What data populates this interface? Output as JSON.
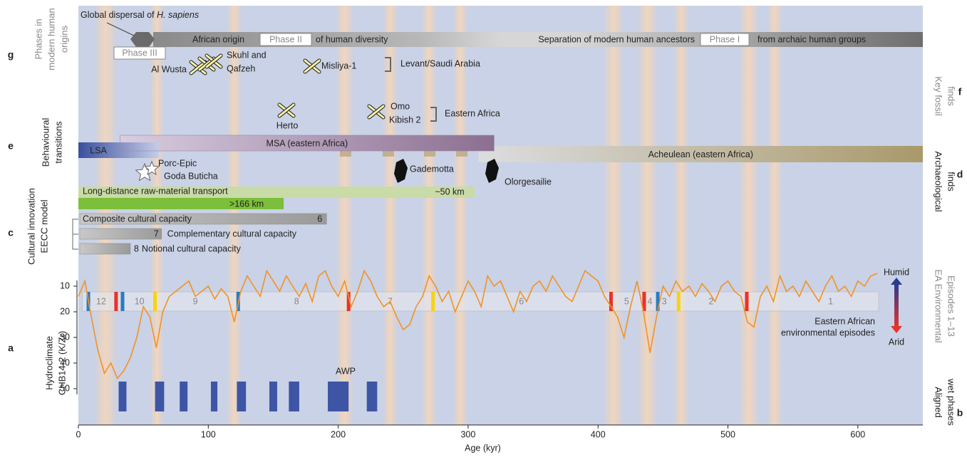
{
  "chart_data": {
    "type": "line",
    "xlabel": "Age (kyr)",
    "ylabel_lines": [
      "Hydroclimate",
      "CHB14-2 (K/Zr)"
    ],
    "letter": "a",
    "xlim": [
      0,
      650
    ],
    "xticks": [
      0,
      100,
      200,
      300,
      400,
      500,
      600
    ],
    "ylim": [
      55,
      0
    ],
    "yticks": [
      10,
      20,
      30,
      40,
      50
    ],
    "color": "#f39223",
    "x": [
      0,
      5,
      10,
      15,
      20,
      25,
      30,
      35,
      40,
      45,
      50,
      55,
      60,
      65,
      70,
      75,
      80,
      85,
      90,
      95,
      100,
      105,
      110,
      115,
      120,
      125,
      130,
      135,
      140,
      145,
      150,
      155,
      160,
      165,
      170,
      175,
      180,
      185,
      190,
      195,
      200,
      205,
      210,
      215,
      220,
      225,
      230,
      235,
      240,
      245,
      250,
      255,
      260,
      265,
      270,
      275,
      280,
      285,
      290,
      295,
      300,
      305,
      310,
      315,
      320,
      325,
      330,
      335,
      340,
      345,
      350,
      355,
      360,
      365,
      370,
      375,
      380,
      385,
      390,
      395,
      400,
      405,
      410,
      415,
      420,
      425,
      430,
      435,
      440,
      445,
      450,
      455,
      460,
      465,
      470,
      475,
      480,
      485,
      490,
      495,
      500,
      505,
      510,
      515,
      520,
      525,
      530,
      535,
      540,
      545,
      550,
      555,
      560,
      565,
      570,
      575,
      580,
      585,
      590,
      595,
      600,
      605,
      610,
      615
    ],
    "values": [
      14,
      8,
      22,
      35,
      44,
      40,
      46,
      43,
      38,
      30,
      18,
      22,
      34,
      20,
      14,
      12,
      10,
      8,
      14,
      12,
      10,
      15,
      11,
      14,
      24,
      12,
      6,
      10,
      14,
      4,
      8,
      12,
      6,
      10,
      14,
      9,
      16,
      6,
      4,
      10,
      14,
      8,
      18,
      12,
      4,
      8,
      14,
      18,
      16,
      22,
      27,
      25,
      18,
      14,
      6,
      10,
      16,
      12,
      20,
      14,
      8,
      12,
      18,
      6,
      10,
      8,
      14,
      20,
      12,
      16,
      10,
      8,
      12,
      6,
      10,
      14,
      16,
      10,
      4,
      6,
      8,
      14,
      18,
      22,
      30,
      18,
      8,
      20,
      36,
      22,
      10,
      14,
      8,
      12,
      10,
      14,
      9,
      12,
      16,
      10,
      8,
      12,
      14,
      24,
      26,
      14,
      10,
      16,
      6,
      12,
      10,
      14,
      8,
      12,
      16,
      10,
      6,
      12,
      10,
      14,
      8,
      10,
      6,
      5
    ],
    "humid": "Humid",
    "arid": "Arid",
    "background_bands": [
      [
        12,
        30
      ],
      [
        55,
        66
      ],
      [
        114,
        126
      ],
      [
        198,
        212
      ],
      [
        234,
        246
      ],
      [
        264,
        276
      ],
      [
        288,
        300
      ],
      [
        404,
        420
      ],
      [
        430,
        446
      ],
      [
        458,
        470
      ],
      [
        508,
        524
      ],
      [
        530,
        542
      ]
    ],
    "episodes": {
      "label_lines": [
        "EA Environmental",
        "Episodes 1–13"
      ],
      "caption_lines": [
        "Eastern African",
        "environmental episodes"
      ],
      "start": 3,
      "end": 616,
      "numbers": [
        {
          "n": 12,
          "age": 17.5
        },
        {
          "n": 10,
          "age": 47
        },
        {
          "n": 9,
          "age": 90
        },
        {
          "n": 8,
          "age": 168
        },
        {
          "n": 7,
          "age": 240
        },
        {
          "n": 6,
          "age": 341
        },
        {
          "n": 5,
          "age": 422
        },
        {
          "n": 4,
          "age": 440
        },
        {
          "n": 3,
          "age": 451
        },
        {
          "n": 2,
          "age": 487
        },
        {
          "n": 1,
          "age": 579
        }
      ],
      "boundaries": [
        {
          "age": 7.7,
          "color": "#2b7bc0"
        },
        {
          "age": 29,
          "color": "#e8322a"
        },
        {
          "age": 34,
          "color": "#2b7bc0"
        },
        {
          "age": 59,
          "color": "#f5d410"
        },
        {
          "age": 123,
          "color": "#2b7bc0"
        },
        {
          "age": 208,
          "color": "#e8322a"
        },
        {
          "age": 273,
          "color": "#f5d410"
        },
        {
          "age": 410,
          "color": "#e8322a"
        },
        {
          "age": 435.5,
          "color": "#e8322a"
        },
        {
          "age": 446,
          "color": "#2b7bc0"
        },
        {
          "age": 462,
          "color": "#f5d410"
        },
        {
          "age": 514.5,
          "color": "#e8322a"
        }
      ]
    },
    "wet_phases": {
      "letter": "b",
      "label_lines": [
        "Aligned",
        "wet phases"
      ],
      "annotation": "AWP",
      "color": "#3e55a6",
      "phases": [
        [
          31,
          37
        ],
        [
          59,
          66
        ],
        [
          78,
          84
        ],
        [
          102,
          107
        ],
        [
          122,
          129
        ],
        [
          147,
          153
        ],
        [
          162,
          170
        ],
        [
          192,
          208
        ],
        [
          222,
          230
        ]
      ]
    },
    "phases": {
      "letter": "g",
      "label_lines": [
        "Phases in",
        "modern human",
        "origins"
      ],
      "dispersal": [
        "Global dispersal of ",
        "H. sapiens"
      ],
      "phase3": "Phase III",
      "phase2_left": "African origin",
      "phase2": "Phase II",
      "phase2_right": "of human diversity",
      "phase1_left": "Separation of modern human ancestors",
      "phase1": "Phase I",
      "phase1_right": "from archaic human groups"
    },
    "fossils": {
      "letter": "f",
      "label_lines": [
        "Key fossil",
        "finds"
      ],
      "finds": [
        "Al Wusta",
        "Skuhl and",
        "Qafzeh",
        "Misliya-1",
        "Herto",
        "Omo",
        "Kibish 2"
      ],
      "regions": [
        "Levant/Saudi Arabia",
        "Eastern Africa"
      ]
    },
    "behaviour": {
      "letter": "e",
      "label_lines": [
        "Behavioural",
        "transitions"
      ],
      "industries": [
        {
          "name": "LSA",
          "start": 0,
          "end": 62
        },
        {
          "name": "MSA (eastern Africa)",
          "start": 32,
          "end": 320
        },
        {
          "name": "Acheulean (eastern Africa)",
          "start": 308,
          "end": 650
        }
      ]
    },
    "archaeology": {
      "letter": "d",
      "label_lines": [
        "Archaeological",
        "finds"
      ],
      "sites": [
        "Porc-Epic",
        "Goda Buticha",
        "Gademotta",
        "Olorgesailie"
      ]
    },
    "transport": {
      "label": "Long-distance raw-material transport",
      "bands": [
        {
          "label": "~50 km",
          "start": 0,
          "end": 305
        },
        {
          "label": ">166 km",
          "start": 0,
          "end": 158
        }
      ]
    },
    "eecc": {
      "letter": "c",
      "label_lines": [
        "Cultural innovation",
        "EECC model"
      ],
      "capacities": [
        {
          "number": 6,
          "label": "Composite cultural capacity",
          "end": 191
        },
        {
          "number": 7,
          "label": "Complementary cultural capacity",
          "end": 64
        },
        {
          "number": 8,
          "label": "Notional cultural capacity",
          "end": 40
        }
      ]
    }
  }
}
